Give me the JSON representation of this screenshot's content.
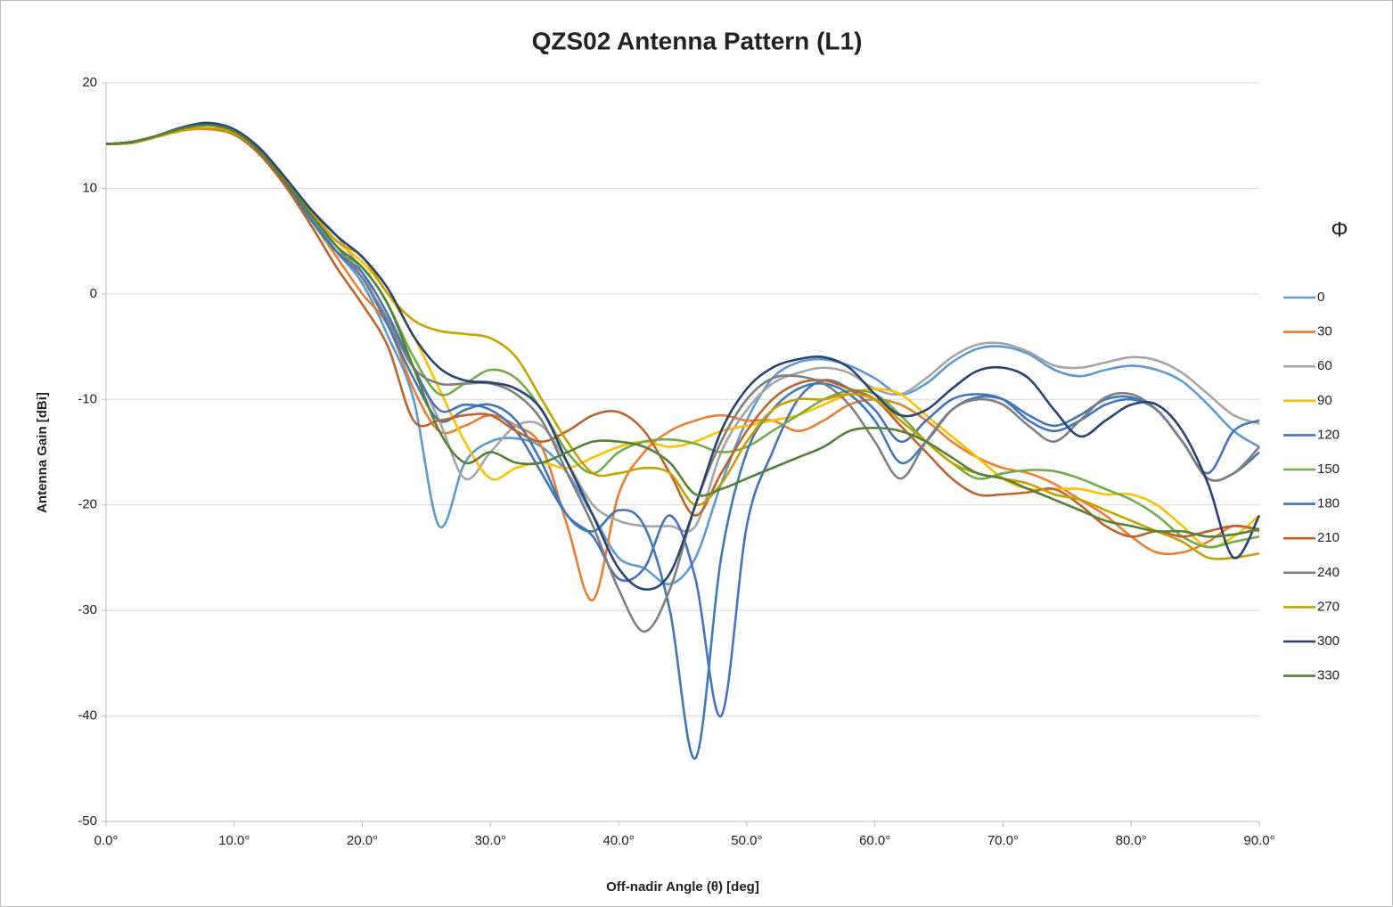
{
  "chart_data": {
    "type": "line",
    "title": "QZS02 Antenna Pattern (L1)",
    "x_label": "Off-nadir Angle (θ) [deg]",
    "y_label": "Antenna Gain [dBi]",
    "legend_title": "Φ",
    "legend": "right",
    "grid": true,
    "x": [
      0,
      2,
      4,
      6,
      8,
      10,
      12,
      14,
      16,
      18,
      20,
      22,
      24,
      26,
      28,
      30,
      32,
      34,
      36,
      38,
      40,
      42,
      44,
      46,
      48,
      50,
      52,
      54,
      56,
      58,
      60,
      62,
      64,
      66,
      68,
      70,
      72,
      74,
      76,
      78,
      80,
      82,
      84,
      86,
      88,
      90
    ],
    "xlim": [
      0,
      90
    ],
    "xticks": [
      {
        "value": 0,
        "label": "0.0°"
      },
      {
        "value": 10,
        "label": "10.0°"
      },
      {
        "value": 20,
        "label": "20.0°"
      },
      {
        "value": 30,
        "label": "30.0°"
      },
      {
        "value": 40,
        "label": "40.0°"
      },
      {
        "value": 50,
        "label": "50.0°"
      },
      {
        "value": 60,
        "label": "60.0°"
      },
      {
        "value": 70,
        "label": "70.0°"
      },
      {
        "value": 80,
        "label": "80.0°"
      },
      {
        "value": 90,
        "label": "90.0°"
      }
    ],
    "ylim": [
      -50,
      20
    ],
    "yticks": [
      20,
      10,
      0,
      -10,
      -20,
      -30,
      -40,
      -50
    ],
    "series": [
      {
        "name": "0",
        "color": "#5b9bd5",
        "values": [
          14.2,
          14.4,
          15,
          15.7,
          16,
          15.3,
          13.5,
          10.6,
          7.3,
          4,
          1,
          -4,
          -10,
          -22,
          -16,
          -14,
          -13.7,
          -14.5,
          -17,
          -21,
          -25,
          -26,
          -27.5,
          -25,
          -18,
          -12,
          -8,
          -6.5,
          -6.2,
          -6.8,
          -8,
          -9.5,
          -8.5,
          -6.5,
          -5.2,
          -5,
          -5.7,
          -7.2,
          -7.8,
          -7.2,
          -6.8,
          -7.2,
          -8.3,
          -10.5,
          -13,
          -14.5
        ]
      },
      {
        "name": "30",
        "color": "#ed7d31",
        "values": [
          14.2,
          14.3,
          14.9,
          15.5,
          15.6,
          15.1,
          13.3,
          10.5,
          7,
          3.5,
          0,
          -3,
          -9,
          -13,
          -12.5,
          -11.5,
          -12.5,
          -14.5,
          -22,
          -29,
          -19,
          -15,
          -13,
          -12,
          -11.5,
          -12,
          -12,
          -13,
          -12,
          -10.5,
          -10,
          -10.5,
          -12,
          -14,
          -15.5,
          -16.5,
          -17,
          -18,
          -19.5,
          -21,
          -23,
          -24.5,
          -24.5,
          -23.5,
          -22,
          -22.5
        ]
      },
      {
        "name": "60",
        "color": "#a5a5a5",
        "values": [
          14.2,
          14.4,
          15,
          15.7,
          16,
          15.4,
          13.7,
          11,
          8,
          5.5,
          2,
          -3,
          -7,
          -12,
          -17.5,
          -15,
          -12.5,
          -12.5,
          -16,
          -20,
          -21.5,
          -22,
          -22,
          -22,
          -15,
          -11,
          -8.5,
          -7.5,
          -7,
          -7.5,
          -9,
          -9.5,
          -8,
          -6,
          -4.8,
          -4.7,
          -5.5,
          -6.8,
          -7,
          -6.5,
          -6,
          -6.3,
          -7.5,
          -9.5,
          -11.5,
          -12.3
        ]
      },
      {
        "name": "90",
        "color": "#ffc000",
        "values": [
          14.2,
          14.3,
          14.9,
          15.5,
          15.7,
          15.3,
          13.7,
          11,
          7.8,
          5,
          3,
          0,
          -4,
          -9,
          -14,
          -17.5,
          -16.5,
          -16,
          -16.5,
          -15.5,
          -14.5,
          -14,
          -14.5,
          -14,
          -13,
          -12.5,
          -12,
          -11.5,
          -10.5,
          -9.5,
          -9,
          -9.5,
          -11.5,
          -13.5,
          -15.5,
          -17.5,
          -18.5,
          -18.5,
          -18.5,
          -19,
          -19,
          -20,
          -22,
          -24,
          -23,
          -21
        ]
      },
      {
        "name": "120",
        "color": "#4472c4",
        "values": [
          14.2,
          14.4,
          15,
          15.8,
          16.2,
          15.5,
          13.6,
          10.6,
          7,
          4,
          2,
          -2,
          -7,
          -11,
          -10.5,
          -11,
          -13,
          -17,
          -21,
          -23,
          -27,
          -26,
          -21,
          -27,
          -40,
          -22,
          -15,
          -10,
          -8.2,
          -9,
          -11,
          -14,
          -12,
          -10,
          -9.5,
          -10,
          -12,
          -13,
          -12,
          -10.5,
          -10,
          -11,
          -14,
          -17,
          -13,
          -12
        ]
      },
      {
        "name": "150",
        "color": "#70ad47",
        "values": [
          14.2,
          14.4,
          15,
          15.8,
          16.1,
          15.4,
          13.5,
          10.5,
          7,
          4,
          2.5,
          -1,
          -6,
          -9.5,
          -8.5,
          -7.2,
          -8,
          -11,
          -15,
          -17,
          -15,
          -14,
          -13.8,
          -14.2,
          -15,
          -14.5,
          -13,
          -11.5,
          -10,
          -9.2,
          -9.5,
          -11.5,
          -14,
          -16,
          -17.5,
          -17,
          -16.7,
          -16.8,
          -17.5,
          -18.5,
          -19.5,
          -21,
          -23,
          -24,
          -23.5,
          -23
        ]
      },
      {
        "name": "180",
        "color": "#3d7ab5",
        "values": [
          14.2,
          14.4,
          15,
          15.8,
          16.2,
          15.5,
          13.5,
          10.4,
          7,
          4,
          1.5,
          -3,
          -8,
          -12,
          -11,
          -10.5,
          -12,
          -16,
          -21,
          -22.5,
          -20.5,
          -22,
          -30,
          -44,
          -25,
          -15,
          -11,
          -9,
          -8.5,
          -9.5,
          -12,
          -16,
          -14,
          -11,
          -9.8,
          -10,
          -11.5,
          -12.5,
          -11.5,
          -10,
          -9.8,
          -11,
          -14,
          -17.5,
          -17,
          -15
        ]
      },
      {
        "name": "210",
        "color": "#c0622b",
        "values": [
          14.2,
          14.3,
          14.9,
          15.5,
          15.7,
          15.1,
          13.2,
          10.2,
          6.5,
          2.5,
          -1,
          -5,
          -12,
          -12,
          -11.5,
          -11.5,
          -13,
          -14,
          -13,
          -11.5,
          -11.2,
          -13,
          -17,
          -21,
          -17,
          -13,
          -10,
          -8.5,
          -8.2,
          -9,
          -10,
          -12.5,
          -15,
          -17.5,
          -19,
          -19,
          -18.8,
          -18.5,
          -20,
          -22,
          -23,
          -22.5,
          -23,
          -22.5,
          -22,
          -22.3
        ]
      },
      {
        "name": "240",
        "color": "#7f7f7f",
        "values": [
          14.2,
          14.4,
          15,
          15.7,
          16,
          15.4,
          13.5,
          10.6,
          7.5,
          4.5,
          1.5,
          -2.5,
          -7,
          -8.5,
          -8.5,
          -8.5,
          -9.5,
          -12,
          -17,
          -22,
          -28,
          -32,
          -28,
          -20,
          -14,
          -10,
          -8,
          -7.8,
          -8.5,
          -10.5,
          -14,
          -17.5,
          -14,
          -11,
          -10,
          -10.5,
          -12.5,
          -14,
          -12,
          -9.8,
          -9.5,
          -11,
          -14,
          -17.5,
          -17,
          -14.5
        ]
      },
      {
        "name": "270",
        "color": "#c9a000",
        "values": [
          14.2,
          14.3,
          14.9,
          15.5,
          15.7,
          15.2,
          13.5,
          10.8,
          7.8,
          5,
          3.5,
          0,
          -2.5,
          -3.5,
          -3.8,
          -4.2,
          -6,
          -10,
          -14,
          -17,
          -17,
          -16.5,
          -17,
          -20,
          -18,
          -14,
          -11,
          -10,
          -10,
          -9.5,
          -10,
          -12,
          -14,
          -16,
          -17,
          -17.5,
          -18,
          -19,
          -19.5,
          -20.5,
          -21.5,
          -22.5,
          -23.5,
          -25,
          -25,
          -24.6
        ]
      },
      {
        "name": "300",
        "color": "#264478",
        "values": [
          14.2,
          14.4,
          15,
          15.8,
          16.2,
          15.6,
          13.8,
          11,
          8,
          5.5,
          3.5,
          0.5,
          -4,
          -7,
          -8.2,
          -8.4,
          -9,
          -11,
          -16,
          -21,
          -26,
          -28,
          -26.5,
          -20,
          -13,
          -9,
          -7,
          -6.2,
          -6,
          -7,
          -9.5,
          -11.5,
          -11,
          -9,
          -7.3,
          -7,
          -8,
          -11,
          -13.5,
          -12,
          -10.5,
          -10.5,
          -13,
          -18,
          -25,
          -21
        ]
      },
      {
        "name": "330",
        "color": "#548235",
        "values": [
          14.2,
          14.4,
          15,
          15.7,
          16,
          15.4,
          13.5,
          10.6,
          7.5,
          4.5,
          2.5,
          -1,
          -7,
          -13,
          -16,
          -15,
          -16,
          -16,
          -15,
          -14,
          -14,
          -14.5,
          -16,
          -19,
          -18.5,
          -17.5,
          -16.5,
          -15.5,
          -14.5,
          -13,
          -12.7,
          -13,
          -14,
          -15.5,
          -17,
          -17.5,
          -18.5,
          -19.5,
          -20.5,
          -21.5,
          -22,
          -22.5,
          -22.5,
          -23,
          -22.8,
          -22.3
        ]
      }
    ]
  }
}
